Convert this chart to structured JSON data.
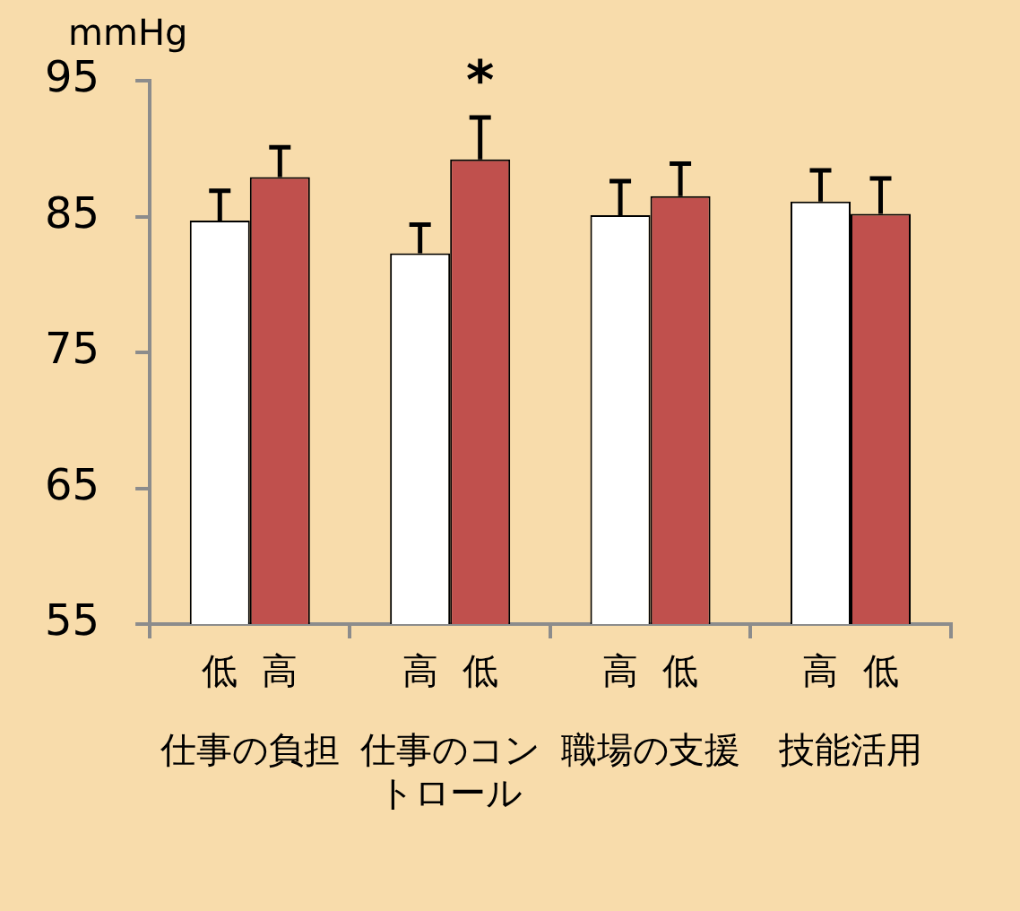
{
  "chart_data": {
    "type": "bar",
    "ylabel": "mmHg",
    "categories": [
      "仕事の負担",
      "仕事のコントロール",
      "職場の支援",
      "技能活用"
    ],
    "series": [
      {
        "color": "#ffffff",
        "values": [
          84.7,
          82.3,
          85.1,
          86.1
        ],
        "errors": [
          [
            84.7,
            86.9
          ],
          [
            82.3,
            84.4
          ],
          [
            85.1,
            87.6
          ],
          [
            86.1,
            88.4
          ]
        ]
      },
      {
        "color": "#c0504d",
        "values": [
          87.9,
          89.2,
          86.5,
          85.2
        ],
        "errors": [
          [
            87.9,
            90.1
          ],
          [
            89.2,
            92.3
          ],
          [
            86.5,
            88.9
          ],
          [
            85.2,
            87.8
          ]
        ]
      }
    ],
    "ylim": [
      55,
      95
    ],
    "yticks": [
      55,
      65,
      75,
      85,
      95
    ],
    "grid": false,
    "legend": false,
    "annotations": [
      "低",
      "高",
      "高",
      "低",
      "高",
      "低",
      "高",
      "低",
      "*"
    ]
  }
}
